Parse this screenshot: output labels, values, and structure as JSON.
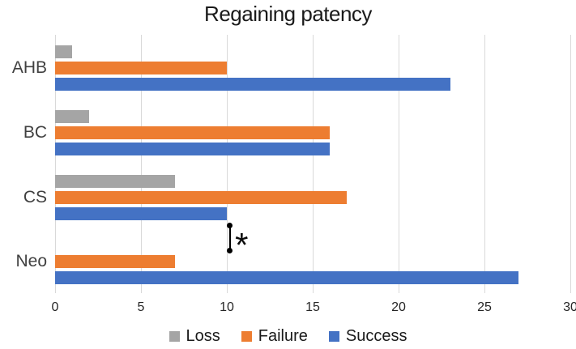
{
  "chart_data": {
    "type": "bar",
    "orientation": "horizontal",
    "title": "Regaining patency",
    "xlabel": "",
    "ylabel": "",
    "xlim": [
      0,
      30
    ],
    "x_ticks": [
      0,
      5,
      10,
      15,
      20,
      25,
      30
    ],
    "grid": true,
    "legend_position": "bottom",
    "categories": [
      "AHB",
      "BC",
      "CS",
      "Neo"
    ],
    "series": [
      {
        "name": "Loss",
        "color": "#A5A5A5",
        "values": [
          1,
          2,
          7,
          0
        ]
      },
      {
        "name": "Failure",
        "color": "#ED7D31",
        "values": [
          10,
          16,
          17,
          7
        ]
      },
      {
        "name": "Success",
        "color": "#4472C4",
        "values": [
          23,
          16,
          10,
          27
        ]
      }
    ],
    "annotation": {
      "type": "significance-marker",
      "symbol": "*",
      "x_value": 10.15,
      "between_categories": [
        "CS",
        "Neo"
      ]
    }
  },
  "colors": {
    "gridline": "#D9D9D9",
    "annotation": "#000000",
    "title_text": "#1A1A1A",
    "axis_text": "#262626",
    "category_text": "#404040"
  }
}
